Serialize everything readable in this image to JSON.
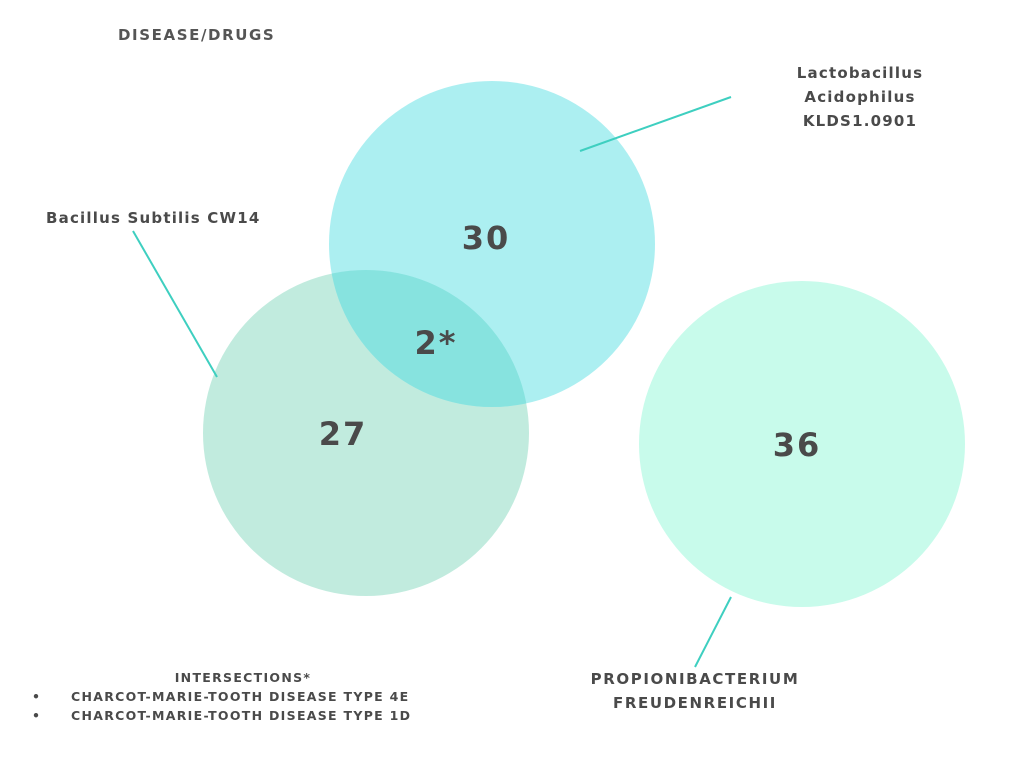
{
  "title": "DISEASE/DRUGS",
  "sets": {
    "lacto": {
      "label_lines": [
        "Lactobacillus",
        "Acidophilus",
        "KLDS1.0901"
      ],
      "count": "30",
      "color": "#9eecef"
    },
    "bacillus": {
      "label": "Bacillus Subtilis CW14",
      "count": "27",
      "color": "#b6e8d8"
    },
    "propioni": {
      "label_lines": [
        "PROPIONIBACTERIUM",
        "FREUDENREICHII"
      ],
      "count": "36",
      "color": "#c8fbeb"
    }
  },
  "overlap": {
    "count": "2*",
    "color": "#87e3df"
  },
  "leader_color": "#3ecfc0",
  "intersections": {
    "heading": "INTERSECTIONS*",
    "bullet": "•",
    "items": [
      "CHARCOT-MARIE-TOOTH DISEASE TYPE 4E",
      "CHARCOT-MARIE-TOOTH DISEASE TYPE 1D"
    ]
  }
}
